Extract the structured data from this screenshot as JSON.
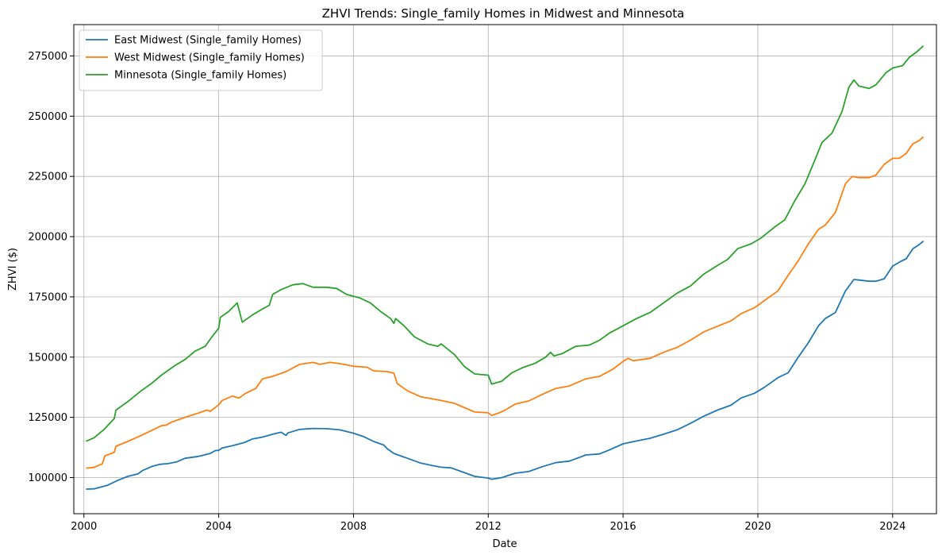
{
  "chart_data": {
    "type": "line",
    "title": "ZHVI Trends: Single_family Homes in Midwest and Minnesota",
    "xlabel": "Date",
    "ylabel": "ZHVI ($)",
    "grid": true,
    "legend_position": "top-left",
    "xlim": [
      1999.7,
      2025.3
    ],
    "ylim": [
      85000,
      288000
    ],
    "x_ticks": [
      2000,
      2004,
      2008,
      2012,
      2016,
      2020,
      2024
    ],
    "x_tick_labels": [
      "2000",
      "2004",
      "2008",
      "2012",
      "2016",
      "2020",
      "2024"
    ],
    "y_ticks": [
      100000,
      125000,
      150000,
      175000,
      200000,
      225000,
      250000,
      275000
    ],
    "y_tick_labels": [
      "100000",
      "125000",
      "150000",
      "175000",
      "200000",
      "225000",
      "250000",
      "275000"
    ],
    "series": [
      {
        "name": "East Midwest (Single_family Homes)",
        "color": "#1f77b4",
        "points": [
          [
            2000.08,
            95200
          ],
          [
            2000.3,
            95300
          ],
          [
            2000.7,
            96800
          ],
          [
            2001.0,
            98800
          ],
          [
            2001.3,
            100500
          ],
          [
            2001.6,
            101500
          ],
          [
            2001.75,
            103000
          ],
          [
            2002.0,
            104500
          ],
          [
            2002.25,
            105500
          ],
          [
            2002.5,
            105800
          ],
          [
            2002.75,
            106500
          ],
          [
            2003.0,
            108000
          ],
          [
            2003.4,
            108800
          ],
          [
            2003.75,
            110000
          ],
          [
            2003.9,
            111200
          ],
          [
            2004.0,
            111300
          ],
          [
            2004.1,
            112300
          ],
          [
            2004.4,
            113200
          ],
          [
            2004.75,
            114500
          ],
          [
            2005.0,
            116000
          ],
          [
            2005.3,
            116800
          ],
          [
            2005.6,
            118000
          ],
          [
            2005.85,
            118800
          ],
          [
            2006.0,
            117500
          ],
          [
            2006.05,
            118500
          ],
          [
            2006.4,
            120000
          ],
          [
            2006.8,
            120400
          ],
          [
            2007.2,
            120300
          ],
          [
            2007.6,
            119800
          ],
          [
            2008.0,
            118400
          ],
          [
            2008.3,
            117000
          ],
          [
            2008.6,
            115000
          ],
          [
            2008.9,
            113500
          ],
          [
            2009.0,
            112000
          ],
          [
            2009.2,
            110000
          ],
          [
            2009.6,
            108000
          ],
          [
            2010.0,
            106000
          ],
          [
            2010.4,
            104800
          ],
          [
            2010.6,
            104300
          ],
          [
            2010.9,
            104000
          ],
          [
            2011.2,
            102500
          ],
          [
            2011.6,
            100500
          ],
          [
            2012.0,
            99800
          ],
          [
            2012.1,
            99300
          ],
          [
            2012.4,
            100000
          ],
          [
            2012.8,
            101800
          ],
          [
            2013.2,
            102500
          ],
          [
            2013.6,
            104500
          ],
          [
            2014.0,
            106200
          ],
          [
            2014.4,
            106800
          ],
          [
            2014.9,
            109400
          ],
          [
            2015.3,
            109800
          ],
          [
            2015.6,
            111500
          ],
          [
            2016.0,
            114000
          ],
          [
            2016.4,
            115200
          ],
          [
            2016.8,
            116300
          ],
          [
            2017.2,
            118000
          ],
          [
            2017.6,
            119800
          ],
          [
            2018.0,
            122500
          ],
          [
            2018.4,
            125500
          ],
          [
            2018.8,
            128000
          ],
          [
            2019.2,
            130000
          ],
          [
            2019.5,
            133000
          ],
          [
            2019.9,
            135000
          ],
          [
            2020.2,
            137500
          ],
          [
            2020.6,
            141500
          ],
          [
            2020.9,
            143500
          ],
          [
            2021.2,
            150000
          ],
          [
            2021.5,
            156000
          ],
          [
            2021.8,
            163000
          ],
          [
            2022.0,
            166000
          ],
          [
            2022.3,
            168500
          ],
          [
            2022.6,
            177500
          ],
          [
            2022.85,
            182200
          ],
          [
            2023.0,
            182000
          ],
          [
            2023.3,
            181500
          ],
          [
            2023.5,
            181500
          ],
          [
            2023.75,
            182500
          ],
          [
            2024.0,
            187800
          ],
          [
            2024.25,
            189800
          ],
          [
            2024.4,
            190800
          ],
          [
            2024.6,
            195000
          ],
          [
            2024.8,
            196800
          ],
          [
            2024.9,
            198000
          ]
        ]
      },
      {
        "name": "West Midwest (Single_family Homes)",
        "color": "#ff7f0e",
        "points": [
          [
            2000.08,
            103900
          ],
          [
            2000.3,
            104200
          ],
          [
            2000.55,
            105800
          ],
          [
            2000.62,
            109000
          ],
          [
            2000.9,
            110500
          ],
          [
            2000.95,
            113000
          ],
          [
            2001.3,
            115000
          ],
          [
            2001.7,
            117500
          ],
          [
            2002.0,
            119500
          ],
          [
            2002.3,
            121500
          ],
          [
            2002.45,
            121800
          ],
          [
            2002.6,
            123000
          ],
          [
            2003.0,
            125000
          ],
          [
            2003.4,
            126800
          ],
          [
            2003.65,
            128000
          ],
          [
            2003.75,
            127500
          ],
          [
            2004.0,
            130200
          ],
          [
            2004.1,
            132000
          ],
          [
            2004.4,
            133800
          ],
          [
            2004.6,
            133000
          ],
          [
            2004.8,
            135000
          ],
          [
            2005.1,
            137000
          ],
          [
            2005.3,
            141000
          ],
          [
            2005.6,
            142000
          ],
          [
            2006.0,
            144000
          ],
          [
            2006.4,
            147000
          ],
          [
            2006.8,
            147800
          ],
          [
            2007.0,
            147000
          ],
          [
            2007.3,
            147800
          ],
          [
            2007.6,
            147300
          ],
          [
            2008.0,
            146200
          ],
          [
            2008.4,
            145800
          ],
          [
            2008.6,
            144300
          ],
          [
            2009.0,
            144000
          ],
          [
            2009.2,
            143300
          ],
          [
            2009.3,
            139000
          ],
          [
            2009.6,
            136000
          ],
          [
            2010.0,
            133500
          ],
          [
            2010.3,
            132800
          ],
          [
            2010.6,
            132000
          ],
          [
            2011.0,
            130800
          ],
          [
            2011.3,
            129000
          ],
          [
            2011.6,
            127200
          ],
          [
            2012.0,
            126900
          ],
          [
            2012.1,
            125800
          ],
          [
            2012.35,
            127000
          ],
          [
            2012.5,
            128000
          ],
          [
            2012.8,
            130500
          ],
          [
            2013.2,
            131800
          ],
          [
            2013.6,
            134500
          ],
          [
            2014.0,
            137000
          ],
          [
            2014.4,
            138000
          ],
          [
            2014.9,
            141000
          ],
          [
            2015.3,
            142000
          ],
          [
            2015.7,
            145000
          ],
          [
            2016.0,
            148200
          ],
          [
            2016.15,
            149500
          ],
          [
            2016.3,
            148500
          ],
          [
            2016.8,
            149500
          ],
          [
            2017.2,
            152000
          ],
          [
            2017.6,
            154000
          ],
          [
            2018.0,
            157000
          ],
          [
            2018.4,
            160500
          ],
          [
            2018.8,
            162800
          ],
          [
            2019.2,
            165000
          ],
          [
            2019.5,
            168000
          ],
          [
            2019.9,
            170500
          ],
          [
            2020.2,
            173500
          ],
          [
            2020.6,
            177500
          ],
          [
            2020.9,
            184000
          ],
          [
            2021.2,
            190000
          ],
          [
            2021.5,
            197000
          ],
          [
            2021.8,
            203000
          ],
          [
            2022.0,
            204800
          ],
          [
            2022.3,
            210000
          ],
          [
            2022.6,
            222000
          ],
          [
            2022.8,
            225000
          ],
          [
            2023.0,
            224500
          ],
          [
            2023.3,
            224500
          ],
          [
            2023.5,
            225500
          ],
          [
            2023.75,
            230000
          ],
          [
            2024.0,
            232500
          ],
          [
            2024.2,
            232500
          ],
          [
            2024.4,
            234500
          ],
          [
            2024.6,
            238500
          ],
          [
            2024.8,
            240000
          ],
          [
            2024.9,
            241200
          ]
        ]
      },
      {
        "name": "Minnesota (Single_family Homes)",
        "color": "#2ca02c",
        "points": [
          [
            2000.08,
            115200
          ],
          [
            2000.3,
            116500
          ],
          [
            2000.6,
            120000
          ],
          [
            2000.9,
            124500
          ],
          [
            2000.95,
            128000
          ],
          [
            2001.3,
            131500
          ],
          [
            2001.7,
            136000
          ],
          [
            2002.0,
            139000
          ],
          [
            2002.3,
            142500
          ],
          [
            2002.7,
            146500
          ],
          [
            2003.0,
            149000
          ],
          [
            2003.3,
            152500
          ],
          [
            2003.6,
            154500
          ],
          [
            2003.75,
            157500
          ],
          [
            2004.0,
            162000
          ],
          [
            2004.05,
            166500
          ],
          [
            2004.3,
            169000
          ],
          [
            2004.55,
            172500
          ],
          [
            2004.7,
            164500
          ],
          [
            2005.0,
            167500
          ],
          [
            2005.3,
            170000
          ],
          [
            2005.5,
            171500
          ],
          [
            2005.6,
            176000
          ],
          [
            2005.85,
            178000
          ],
          [
            2006.2,
            180000
          ],
          [
            2006.5,
            180500
          ],
          [
            2006.8,
            179000
          ],
          [
            2007.2,
            179000
          ],
          [
            2007.5,
            178500
          ],
          [
            2007.8,
            176000
          ],
          [
            2008.2,
            174500
          ],
          [
            2008.5,
            172500
          ],
          [
            2008.8,
            169000
          ],
          [
            2009.1,
            166000
          ],
          [
            2009.2,
            164000
          ],
          [
            2009.25,
            166000
          ],
          [
            2009.5,
            163000
          ],
          [
            2009.8,
            158500
          ],
          [
            2010.2,
            155500
          ],
          [
            2010.5,
            154500
          ],
          [
            2010.6,
            155500
          ],
          [
            2011.0,
            151000
          ],
          [
            2011.3,
            146000
          ],
          [
            2011.6,
            143000
          ],
          [
            2012.0,
            142500
          ],
          [
            2012.1,
            138800
          ],
          [
            2012.4,
            140000
          ],
          [
            2012.7,
            143500
          ],
          [
            2013.0,
            145500
          ],
          [
            2013.4,
            147500
          ],
          [
            2013.7,
            150000
          ],
          [
            2013.85,
            152000
          ],
          [
            2013.95,
            150500
          ],
          [
            2014.2,
            151500
          ],
          [
            2014.6,
            154500
          ],
          [
            2015.0,
            155000
          ],
          [
            2015.3,
            157000
          ],
          [
            2015.6,
            160000
          ],
          [
            2016.0,
            163000
          ],
          [
            2016.4,
            166000
          ],
          [
            2016.8,
            168500
          ],
          [
            2017.2,
            172500
          ],
          [
            2017.6,
            176500
          ],
          [
            2018.0,
            179500
          ],
          [
            2018.4,
            184500
          ],
          [
            2018.8,
            188000
          ],
          [
            2019.1,
            190500
          ],
          [
            2019.4,
            195000
          ],
          [
            2019.8,
            197000
          ],
          [
            2020.1,
            199500
          ],
          [
            2020.5,
            204000
          ],
          [
            2020.8,
            207000
          ],
          [
            2021.1,
            215000
          ],
          [
            2021.4,
            222000
          ],
          [
            2021.7,
            232000
          ],
          [
            2021.9,
            239000
          ],
          [
            2022.2,
            243000
          ],
          [
            2022.5,
            252000
          ],
          [
            2022.7,
            262000
          ],
          [
            2022.85,
            265000
          ],
          [
            2023.0,
            262500
          ],
          [
            2023.3,
            261500
          ],
          [
            2023.5,
            263000
          ],
          [
            2023.8,
            268000
          ],
          [
            2024.0,
            270000
          ],
          [
            2024.3,
            271000
          ],
          [
            2024.5,
            274500
          ],
          [
            2024.7,
            276500
          ],
          [
            2024.9,
            279000
          ]
        ]
      }
    ]
  }
}
